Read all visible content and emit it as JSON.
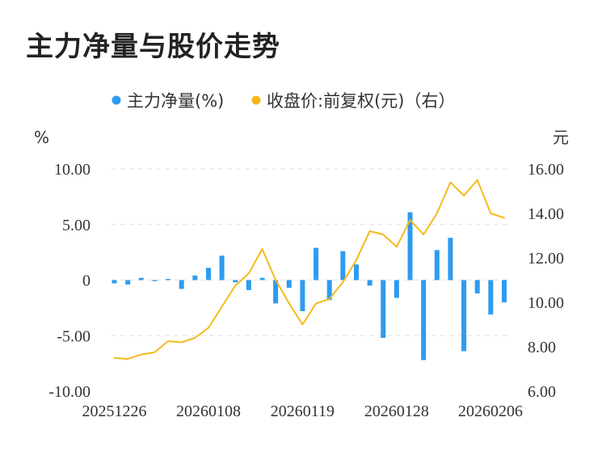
{
  "page_title": "主力净量与股价走势",
  "chart_data": {
    "type": "bar+line",
    "title": "主力净量与股价走势",
    "legend": [
      {
        "name": "主力净量(%)",
        "color": "#2d9bf0"
      },
      {
        "name": "收盘价:前复权(元)（右）",
        "color": "#f5b91a"
      }
    ],
    "left_axis": {
      "unit": "%",
      "min": -10,
      "max": 10,
      "ticks": [
        10,
        5,
        0,
        -5,
        -10
      ],
      "tick_labels": [
        "10.00",
        "5.00",
        "0",
        "-5.00",
        "-10.00"
      ]
    },
    "right_axis": {
      "unit": "元",
      "min": 6,
      "max": 16,
      "ticks": [
        16,
        14,
        12,
        10,
        8,
        6
      ],
      "tick_labels": [
        "16.00",
        "14.00",
        "12.00",
        "10.00",
        "8.00",
        "6.00"
      ]
    },
    "x_tick_labels": [
      "20251226",
      "20260108",
      "20260119",
      "20260128",
      "20260206"
    ],
    "x_tick_indices": [
      0,
      7,
      14,
      21,
      28
    ],
    "series": [
      {
        "name": "主力净量(%)",
        "type": "bar",
        "axis": "left",
        "values": [
          -0.3,
          -0.4,
          0.2,
          -0.1,
          0.1,
          -0.8,
          0.4,
          1.1,
          2.2,
          -0.2,
          -0.9,
          0.2,
          -2.1,
          -0.7,
          -2.8,
          2.9,
          -1.8,
          2.6,
          1.4,
          -0.5,
          -5.2,
          -1.6,
          6.1,
          -7.2,
          2.7,
          3.8,
          -6.4,
          -1.2,
          -3.1,
          -2.0
        ]
      },
      {
        "name": "收盘价:前复权(元)（右）",
        "type": "line",
        "axis": "right",
        "values": [
          7.5,
          7.45,
          7.65,
          7.75,
          8.25,
          8.2,
          8.4,
          8.85,
          9.8,
          10.75,
          11.3,
          12.4,
          11.0,
          9.95,
          9.0,
          9.95,
          10.15,
          10.9,
          11.9,
          13.2,
          13.05,
          12.5,
          13.7,
          13.05,
          14.0,
          15.4,
          14.8,
          15.5,
          14.0,
          13.8
        ]
      }
    ]
  }
}
